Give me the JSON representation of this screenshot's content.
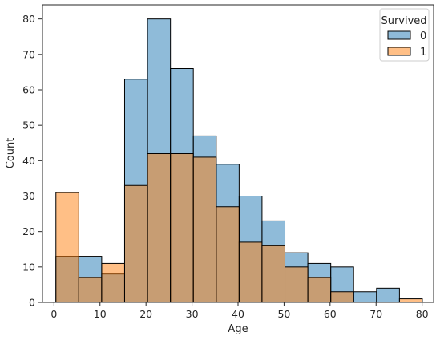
{
  "chart_data": {
    "type": "bar",
    "title": "",
    "xlabel": "Age",
    "ylabel": "Count",
    "xlim": [
      -2.5,
      82.5
    ],
    "ylim": [
      0,
      84
    ],
    "xticks": [
      0,
      10,
      20,
      30,
      40,
      50,
      60,
      70,
      80
    ],
    "yticks": [
      0,
      10,
      20,
      30,
      40,
      50,
      60,
      70,
      80
    ],
    "bin_edges": [
      0.42,
      5.4,
      10.37,
      15.35,
      20.33,
      25.31,
      30.28,
      35.26,
      40.24,
      45.21,
      50.19,
      55.17,
      60.15,
      65.12,
      70.1,
      75.08,
      80.05
    ],
    "legend": {
      "title": "Survived",
      "position": "top-right"
    },
    "series": [
      {
        "name": "0",
        "color": "#1f77b4",
        "values": [
          13,
          13,
          8,
          63,
          80,
          66,
          47,
          39,
          30,
          23,
          14,
          11,
          10,
          3,
          4,
          0
        ]
      },
      {
        "name": "1",
        "color": "#ff7f0e",
        "values": [
          31,
          7,
          11,
          33,
          42,
          42,
          41,
          27,
          17,
          16,
          10,
          7,
          3,
          0,
          0,
          1
        ]
      }
    ]
  }
}
